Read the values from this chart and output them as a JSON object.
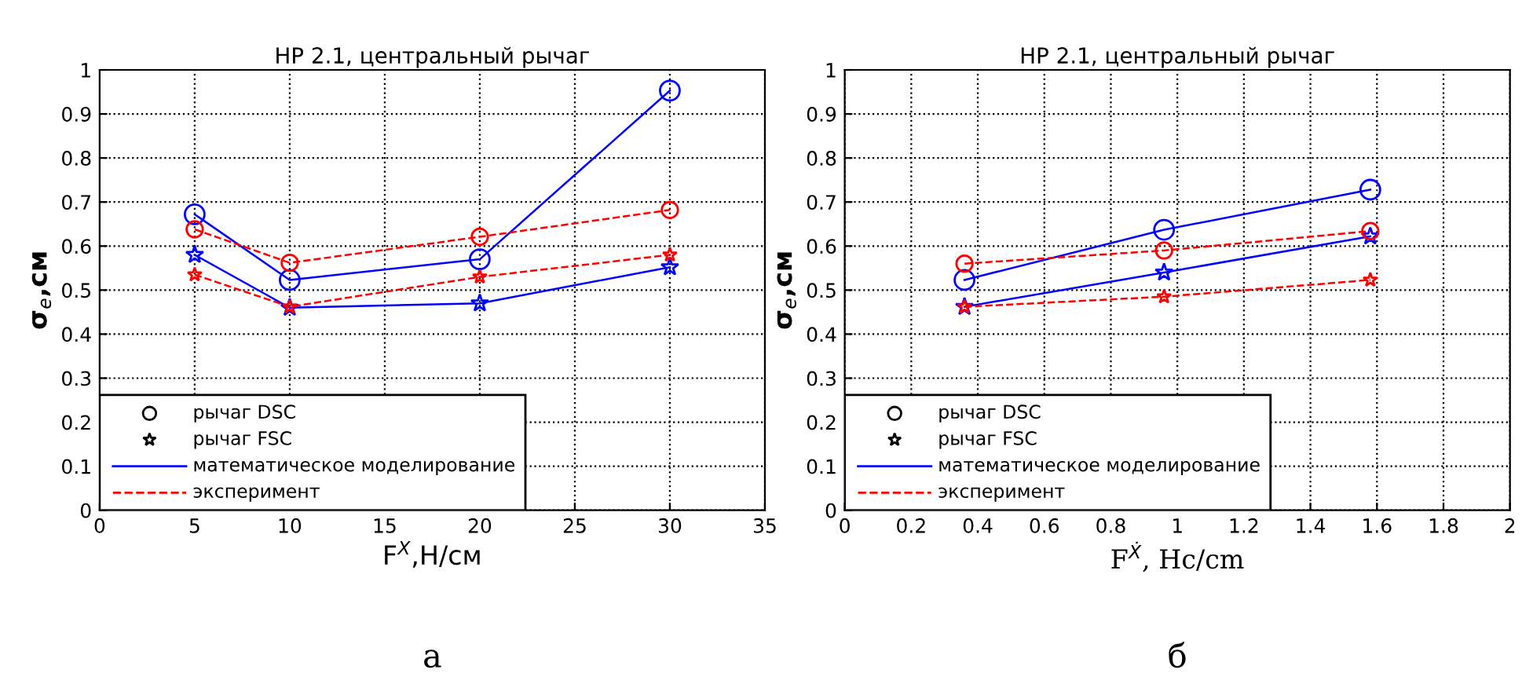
{
  "chart_data": [
    {
      "type": "line",
      "title": "НР 2.1, центральный рычаг",
      "xlabel": "F$^{X}$,Н/см",
      "ylabel": "σ$_{e}$,см",
      "x": [
        5,
        10,
        20,
        30
      ],
      "xlim": [
        0,
        35
      ],
      "xticks": [
        0,
        5,
        10,
        15,
        20,
        25,
        30,
        35
      ],
      "ylim": [
        0,
        1
      ],
      "yticks": [
        0,
        0.1,
        0.2,
        0.3,
        0.4,
        0.5,
        0.6,
        0.7,
        0.8,
        0.9,
        1
      ],
      "grid": true,
      "series": [
        {
          "color": "#0000ff",
          "marker": "circle",
          "line_style": "solid",
          "values": [
            0.672,
            0.523,
            0.57,
            0.953
          ]
        },
        {
          "color": "#0000ff",
          "marker": "star",
          "line_style": "solid",
          "values": [
            0.58,
            0.46,
            0.47,
            0.552
          ]
        },
        {
          "color": "#ff0000",
          "marker": "circle",
          "line_style": "dashed",
          "values": [
            0.638,
            0.562,
            0.621,
            0.682
          ]
        },
        {
          "color": "#ff0000",
          "marker": "star",
          "line_style": "dashed",
          "values": [
            0.535,
            0.462,
            0.53,
            0.58
          ]
        }
      ],
      "annotations": [
        "рычаг DSC",
        "рычаг FSC",
        "математическое моделирование",
        "эксперимент",
        "а"
      ]
    },
    {
      "type": "line",
      "title": "НР 2.1, центральный рычаг",
      "xlabel": "F$^{Ẋ}$, Hc/cm",
      "ylabel": "σ$_{e}$,см",
      "x": [
        0.36,
        0.96,
        1.58
      ],
      "xlim": [
        0,
        2
      ],
      "xticks": [
        0,
        0.2,
        0.4,
        0.6,
        0.8,
        1,
        1.2,
        1.4,
        1.6,
        1.8,
        2
      ],
      "ylim": [
        0,
        1
      ],
      "yticks": [
        0,
        0.1,
        0.2,
        0.3,
        0.4,
        0.5,
        0.6,
        0.7,
        0.8,
        0.9,
        1
      ],
      "grid": true,
      "series": [
        {
          "color": "#0000ff",
          "marker": "circle",
          "line_style": "solid",
          "values": [
            0.523,
            0.637,
            0.728
          ]
        },
        {
          "color": "#0000ff",
          "marker": "star",
          "line_style": "solid",
          "values": [
            0.462,
            0.54,
            0.622
          ]
        },
        {
          "color": "#ff0000",
          "marker": "circle",
          "line_style": "dashed",
          "values": [
            0.56,
            0.59,
            0.634
          ]
        },
        {
          "color": "#ff0000",
          "marker": "star",
          "line_style": "dashed",
          "values": [
            0.462,
            0.485,
            0.523
          ]
        }
      ],
      "annotations": [
        "рычаг DSC",
        "рычаг FSC",
        "математическое моделирование",
        "эксперимент",
        "б"
      ]
    }
  ]
}
